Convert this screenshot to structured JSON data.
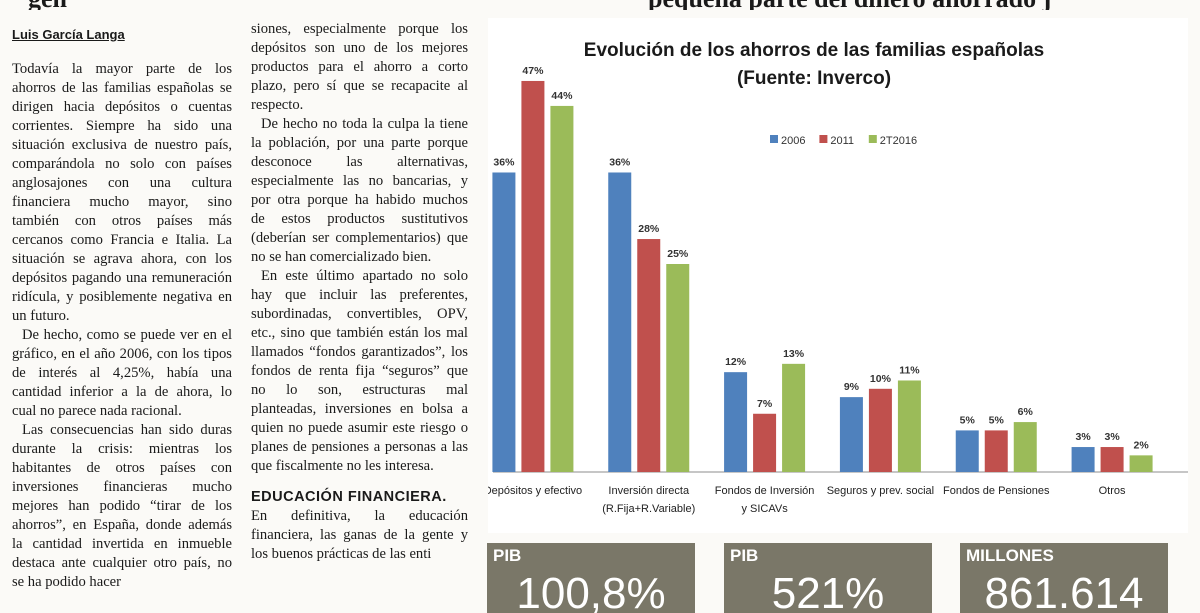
{
  "headline": {
    "left": "gen",
    "right": "pequeña parte del dinero ahorrado j"
  },
  "author": "Luis García Langa",
  "column1": [
    "Todavía la mayor parte de los ahorros de las familias españolas se dirigen hacia depósitos o cuentas corrientes. Siempre ha sido una situación exclusiva de nuestro país, comparándola no solo con países anglosajones con una cultura financiera mucho mayor, sino también con otros países más cercanos como Francia e Italia. La situación se agrava ahora, con los depósitos pagando una remuneración ridícula, y posiblemente negativa en un futuro.",
    "De hecho, como se puede ver en el gráfico, en el año 2006, con los tipos de interés al 4,25%, había una cantidad inferior a la de ahora, lo cual no parece nada racional.",
    "Las consecuencias han sido duras durante la crisis: mientras los habitantes de otros países con inversiones financieras mucho mejores han podido “tirar de los ahorros”, en España, donde además la cantidad invertida en inmueble destaca ante cualquier otro país, no se ha podido hacer"
  ],
  "column2": [
    "siones, especialmente porque los depósitos son uno de los mejores productos para el ahorro a corto plazo, pero sí que se recapacite al respecto.",
    "De hecho no toda la culpa la tiene la población, por una parte porque desconoce las alternativas, especialmente las no bancarias, y por otra porque ha habido muchos de estos productos sustitutivos (deberían ser complementarios) que no se han comercializado bien.",
    "En este último apartado no solo hay que incluir las preferentes, subordinadas, convertibles, OPV, etc., sino que también están los mal llamados “fondos garantizados”, los fondos de renta fija “seguros” que no lo son, estructuras mal planteadas, inversiones en bolsa a quien no puede asumir este riesgo o planes de pensiones a personas a las que fiscalmente no les interesa."
  ],
  "column2_subhead": "EDUCACIÓN FINANCIERA.",
  "column2_after": "En definitiva, la educación financiera, las ganas de la gente y los buenos prácticas de las enti",
  "stats": [
    {
      "label": "PIB",
      "value": "100,8%"
    },
    {
      "label": "PIB",
      "value": "521%"
    },
    {
      "label": "MILLONES",
      "value": "861.614"
    }
  ],
  "chart_data": {
    "type": "bar",
    "title": "Evolución de los ahorros de las familias españolas",
    "subtitle": "(Fuente: Inverco)",
    "categories": [
      "Depósitos y efectivo",
      "Inversión directa (R.Fija+R.Variable)",
      "Fondos de Inversión y SICAVs",
      "Seguros y prev. social",
      "Fondos de Pensiones",
      "Otros"
    ],
    "category_lines": [
      [
        "Depósitos y efectivo"
      ],
      [
        "Inversión directa",
        "(R.Fija+R.Variable)"
      ],
      [
        "Fondos de Inversión",
        "y SICAVs"
      ],
      [
        "Seguros y prev. social"
      ],
      [
        "Fondos de Pensiones"
      ],
      [
        "Otros"
      ]
    ],
    "series": [
      {
        "name": "2006",
        "values": [
          36,
          36,
          12,
          9,
          5,
          3
        ],
        "labels": [
          "36%",
          "36%",
          "12%",
          "9%",
          "5%",
          "3%"
        ],
        "color": "#4f81bd"
      },
      {
        "name": "2011",
        "values": [
          47,
          28,
          7,
          10,
          5,
          3
        ],
        "labels": [
          "47%",
          "28%",
          "7%",
          "10%",
          "5%",
          "3%"
        ],
        "color": "#c0504d"
      },
      {
        "name": "2T2016",
        "values": [
          44,
          25,
          13,
          11,
          6,
          2
        ],
        "labels": [
          "44%",
          "25%",
          "13%",
          "11%",
          "6%",
          "2%"
        ],
        "color": "#9bbb59"
      }
    ],
    "ylim": [
      0,
      50
    ],
    "legend_position": "top-center",
    "grid": false
  }
}
